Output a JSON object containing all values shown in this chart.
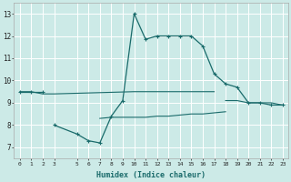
{
  "xlabel": "Humidex (Indice chaleur)",
  "bg_color": "#cceae7",
  "grid_color": "#ffffff",
  "line_color": "#1a6b6b",
  "xlim": [
    -0.5,
    23.5
  ],
  "ylim": [
    6.5,
    13.5
  ],
  "xticks": [
    0,
    1,
    2,
    3,
    5,
    6,
    7,
    8,
    9,
    10,
    11,
    12,
    13,
    14,
    15,
    16,
    17,
    18,
    19,
    20,
    21,
    22,
    23
  ],
  "yticks": [
    7,
    8,
    9,
    10,
    11,
    12,
    13
  ],
  "series": [
    {
      "x": [
        0,
        1,
        2,
        3,
        10,
        11,
        12,
        13,
        14,
        15,
        16,
        17
      ],
      "y": [
        9.5,
        9.5,
        9.4,
        9.4,
        9.5,
        9.5,
        9.5,
        9.5,
        9.5,
        9.5,
        9.5,
        9.5
      ],
      "marker": false
    },
    {
      "x": [
        18,
        19,
        20,
        21,
        22,
        23
      ],
      "y": [
        9.1,
        9.1,
        9.0,
        9.0,
        9.0,
        8.9
      ],
      "marker": false
    },
    {
      "x": [
        7,
        8,
        9,
        10,
        11,
        12,
        13,
        14,
        15,
        16,
        17,
        18
      ],
      "y": [
        8.3,
        8.35,
        8.35,
        8.35,
        8.35,
        8.4,
        8.4,
        8.45,
        8.5,
        8.5,
        8.55,
        8.6
      ],
      "marker": false
    },
    {
      "segments": [
        {
          "x": [
            0,
            1,
            2
          ],
          "y": [
            9.5,
            9.5,
            9.5
          ]
        },
        {
          "x": [
            3,
            5,
            6,
            7,
            8,
            9,
            10,
            11,
            12,
            13,
            14,
            15,
            16,
            17,
            18,
            19,
            20,
            21,
            22,
            23
          ],
          "y": [
            8.0,
            7.6,
            7.3,
            7.2,
            8.4,
            9.1,
            13.0,
            11.85,
            12.0,
            12.0,
            12.0,
            12.0,
            11.55,
            10.3,
            9.85,
            9.7,
            9.0,
            9.0,
            8.9,
            8.9
          ]
        }
      ],
      "marker": true
    }
  ]
}
